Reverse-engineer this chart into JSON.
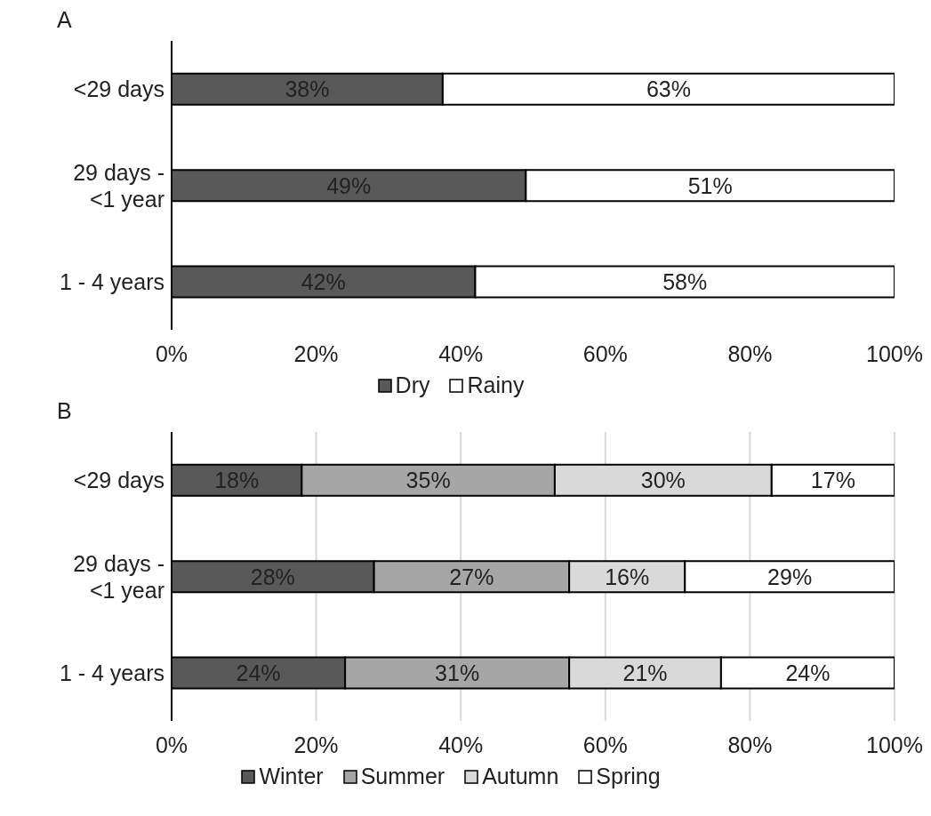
{
  "chart_data": [
    {
      "type": "bar",
      "title": "A",
      "orientation": "horizontal",
      "stacked": true,
      "categories": [
        "<29 days",
        "29 days - <1 year",
        "1 - 4 years"
      ],
      "series": [
        {
          "name": "Dry",
          "color": "#595959",
          "values": [
            37.5,
            49,
            42
          ],
          "value_labels": [
            "38%",
            "49%",
            "42%"
          ]
        },
        {
          "name": "Rainy",
          "color": "#ffffff",
          "values": [
            62.5,
            51,
            58
          ],
          "value_labels": [
            "63%",
            "51%",
            "58%"
          ]
        }
      ],
      "xlim": [
        0,
        100
      ],
      "xticks": [
        {
          "value": 0,
          "label": "0%"
        },
        {
          "value": 20,
          "label": "20%"
        },
        {
          "value": 40,
          "label": "40%"
        },
        {
          "value": 60,
          "label": "60%"
        },
        {
          "value": 80,
          "label": "80%"
        },
        {
          "value": 100,
          "label": "100%"
        }
      ],
      "legend": "bottom"
    },
    {
      "type": "bar",
      "title": "B",
      "orientation": "horizontal",
      "stacked": true,
      "categories": [
        "<29 days",
        "29 days - <1 year",
        "1 - 4 years"
      ],
      "series": [
        {
          "name": "Winter",
          "color": "#595959",
          "values": [
            18,
            28,
            24
          ],
          "value_labels": [
            "18%",
            "28%",
            "24%"
          ]
        },
        {
          "name": "Summer",
          "color": "#a6a6a6",
          "values": [
            35,
            27,
            31
          ],
          "value_labels": [
            "35%",
            "27%",
            "31%"
          ]
        },
        {
          "name": "Autumn",
          "color": "#d9d9d9",
          "values": [
            30,
            16,
            21
          ],
          "value_labels": [
            "30%",
            "16%",
            "21%"
          ]
        },
        {
          "name": "Spring",
          "color": "#ffffff",
          "values": [
            17,
            29,
            24
          ],
          "value_labels": [
            "17%",
            "29%",
            "24%"
          ]
        }
      ],
      "xlim": [
        0,
        100
      ],
      "xticks": [
        {
          "value": 0,
          "label": "0%"
        },
        {
          "value": 20,
          "label": "20%"
        },
        {
          "value": 40,
          "label": "40%"
        },
        {
          "value": 60,
          "label": "60%"
        },
        {
          "value": 80,
          "label": "80%"
        },
        {
          "value": 100,
          "label": "100%"
        }
      ],
      "grid": "x",
      "legend": "bottom"
    }
  ]
}
